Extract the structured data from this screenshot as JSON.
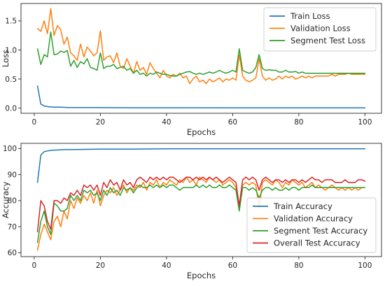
{
  "chart_data": [
    {
      "type": "line",
      "xlabel": "Epochs",
      "ylabel": "Loss",
      "xlim": [
        -4,
        105
      ],
      "ylim": [
        -0.09,
        1.8
      ],
      "xticks": [
        0,
        20,
        40,
        60,
        80,
        100
      ],
      "yticks": [
        0.0,
        0.5,
        1.0,
        1.5
      ],
      "ytick_labels": [
        "0.0",
        "0.5",
        "1.0",
        "1.5"
      ],
      "legend": "upper right",
      "grid": false,
      "series": [
        {
          "name": "Train Loss",
          "color": "#1f77b4",
          "x": [
            1,
            2,
            3,
            4,
            5,
            6,
            8,
            10,
            15,
            20,
            30,
            40,
            60,
            80,
            100
          ],
          "y": [
            0.38,
            0.07,
            0.035,
            0.025,
            0.02,
            0.015,
            0.015,
            0.01,
            0.01,
            0.008,
            0.005,
            0.005,
            0.004,
            0.003,
            0.003
          ]
        },
        {
          "name": "Validation Loss",
          "color": "#ff7f0e",
          "x": [
            1,
            2,
            3,
            4,
            5,
            6,
            7,
            8,
            9,
            10,
            11,
            12,
            13,
            14,
            15,
            16,
            17,
            18,
            19,
            20,
            21,
            22,
            23,
            24,
            25,
            26,
            27,
            28,
            29,
            30,
            31,
            32,
            33,
            34,
            35,
            36,
            37,
            38,
            39,
            40,
            41,
            42,
            43,
            44,
            45,
            46,
            47,
            48,
            49,
            50,
            51,
            52,
            53,
            54,
            55,
            56,
            57,
            58,
            59,
            60,
            61,
            62,
            63,
            64,
            65,
            66,
            67,
            68,
            69,
            70,
            71,
            72,
            73,
            74,
            75,
            76,
            77,
            78,
            79,
            80,
            81,
            82,
            83,
            84,
            85,
            86,
            87,
            88,
            89,
            90,
            91,
            92,
            93,
            94,
            95,
            96,
            97,
            98,
            99,
            100
          ],
          "y": [
            1.37,
            1.32,
            1.5,
            1.28,
            1.71,
            1.25,
            1.42,
            1.35,
            1.1,
            1.22,
            0.95,
            0.9,
            0.82,
            1.1,
            0.88,
            1.05,
            0.98,
            0.9,
            0.95,
            1.33,
            0.82,
            0.88,
            0.9,
            0.78,
            0.95,
            0.72,
            0.68,
            0.85,
            0.72,
            0.6,
            0.8,
            0.65,
            0.7,
            0.58,
            0.78,
            0.68,
            0.6,
            0.52,
            0.65,
            0.55,
            0.52,
            0.58,
            0.55,
            0.6,
            0.52,
            0.55,
            0.42,
            0.5,
            0.55,
            0.45,
            0.48,
            0.42,
            0.5,
            0.45,
            0.48,
            0.52,
            0.45,
            0.5,
            0.48,
            0.52,
            0.48,
            0.92,
            0.55,
            0.48,
            0.45,
            0.48,
            0.52,
            0.85,
            0.55,
            0.48,
            0.52,
            0.48,
            0.5,
            0.55,
            0.5,
            0.55,
            0.52,
            0.55,
            0.5,
            0.52,
            0.55,
            0.52,
            0.55,
            0.52,
            0.55,
            0.55,
            0.55,
            0.55,
            0.55,
            0.58,
            0.55,
            0.58,
            0.58,
            0.58,
            0.6,
            0.58,
            0.58,
            0.58,
            0.58,
            0.58
          ]
        },
        {
          "name": "Segment Test Loss",
          "color": "#2ca02c",
          "x": [
            1,
            2,
            3,
            4,
            5,
            6,
            7,
            8,
            9,
            10,
            11,
            12,
            13,
            14,
            15,
            16,
            17,
            18,
            19,
            20,
            21,
            22,
            23,
            24,
            25,
            26,
            27,
            28,
            29,
            30,
            31,
            32,
            33,
            34,
            35,
            36,
            37,
            38,
            39,
            40,
            41,
            42,
            43,
            44,
            45,
            46,
            47,
            48,
            49,
            50,
            51,
            52,
            53,
            54,
            55,
            56,
            57,
            58,
            59,
            60,
            61,
            62,
            63,
            64,
            65,
            66,
            67,
            68,
            69,
            70,
            71,
            72,
            73,
            74,
            75,
            76,
            77,
            78,
            79,
            80,
            81,
            82,
            83,
            84,
            85,
            86,
            87,
            88,
            89,
            90,
            91,
            92,
            93,
            94,
            95,
            96,
            97,
            98,
            99,
            100
          ],
          "y": [
            1.02,
            0.75,
            0.92,
            0.88,
            1.31,
            0.92,
            0.93,
            0.98,
            0.96,
            0.99,
            0.72,
            0.82,
            0.7,
            0.8,
            0.76,
            0.85,
            0.7,
            0.68,
            0.65,
            0.95,
            0.68,
            0.72,
            0.72,
            0.75,
            0.68,
            0.7,
            0.72,
            0.65,
            0.68,
            0.6,
            0.65,
            0.58,
            0.6,
            0.55,
            0.6,
            0.58,
            0.62,
            0.6,
            0.58,
            0.58,
            0.56,
            0.55,
            0.55,
            0.58,
            0.6,
            0.62,
            0.63,
            0.6,
            0.58,
            0.6,
            0.58,
            0.6,
            0.62,
            0.6,
            0.62,
            0.65,
            0.62,
            0.6,
            0.62,
            0.65,
            0.62,
            1.02,
            0.65,
            0.62,
            0.6,
            0.62,
            0.7,
            0.92,
            0.68,
            0.65,
            0.66,
            0.65,
            0.65,
            0.62,
            0.62,
            0.65,
            0.62,
            0.62,
            0.63,
            0.6,
            0.62,
            0.6,
            0.6,
            0.6,
            0.6,
            0.6,
            0.6,
            0.6,
            0.6,
            0.6,
            0.6,
            0.6,
            0.6,
            0.6,
            0.6,
            0.6,
            0.6,
            0.6,
            0.6,
            0.6
          ]
        }
      ]
    },
    {
      "type": "line",
      "xlabel": "Epochs",
      "ylabel": "Accuracy",
      "xlim": [
        -4,
        105
      ],
      "ylim": [
        58.5,
        102
      ],
      "xticks": [
        0,
        20,
        40,
        60,
        80,
        100
      ],
      "yticks": [
        60,
        70,
        80,
        90,
        100
      ],
      "ytick_labels": [
        "60",
        "70",
        "80",
        "90",
        "100"
      ],
      "legend": "lower right",
      "grid": false,
      "series": [
        {
          "name": "Train Accuracy",
          "color": "#1f77b4",
          "x": [
            1,
            2,
            3,
            4,
            5,
            6,
            8,
            10,
            12,
            15,
            20,
            30,
            40,
            60,
            80,
            100
          ],
          "y": [
            87,
            97.5,
            98.8,
            99.1,
            99.3,
            99.4,
            99.5,
            99.6,
            99.6,
            99.7,
            99.8,
            99.8,
            99.9,
            99.9,
            99.9,
            99.9
          ]
        },
        {
          "name": "Validation Accuracy",
          "color": "#ff7f0e",
          "x": [
            1,
            2,
            3,
            4,
            5,
            6,
            7,
            8,
            9,
            10,
            11,
            12,
            13,
            14,
            15,
            16,
            17,
            18,
            19,
            20,
            21,
            22,
            23,
            24,
            25,
            26,
            27,
            28,
            29,
            30,
            31,
            32,
            33,
            34,
            35,
            36,
            37,
            38,
            39,
            40,
            41,
            42,
            43,
            44,
            45,
            46,
            47,
            48,
            49,
            50,
            51,
            52,
            53,
            54,
            55,
            56,
            57,
            58,
            59,
            60,
            61,
            62,
            63,
            64,
            65,
            66,
            67,
            68,
            69,
            70,
            71,
            72,
            73,
            74,
            75,
            76,
            77,
            78,
            79,
            80,
            81,
            82,
            83,
            84,
            85,
            86,
            87,
            88,
            89,
            90,
            91,
            92,
            93,
            94,
            95,
            96,
            97,
            98,
            99,
            100
          ],
          "y": [
            61,
            67,
            71,
            68,
            65,
            72,
            74,
            70,
            76,
            73,
            80,
            77,
            81,
            79,
            82,
            80,
            83,
            79,
            84,
            78,
            82,
            84,
            83,
            85,
            82,
            84,
            86,
            83,
            85,
            84,
            86,
            85,
            87,
            84,
            87,
            86,
            88,
            85,
            87,
            86,
            88,
            87,
            86,
            88,
            87,
            89,
            87,
            88,
            86,
            89,
            88,
            87,
            89,
            88,
            87,
            88,
            86,
            87,
            88,
            87,
            85,
            77,
            86,
            87,
            86,
            87,
            86,
            77,
            87,
            88,
            87,
            86,
            88,
            87,
            85,
            87,
            86,
            88,
            87,
            86,
            87,
            85,
            86,
            87,
            85,
            86,
            85,
            84,
            85,
            86,
            85,
            84,
            85,
            84,
            85,
            84,
            85,
            84,
            85,
            85
          ]
        },
        {
          "name": "Segment Test Accuracy",
          "color": "#2ca02c",
          "x": [
            1,
            2,
            3,
            4,
            5,
            6,
            7,
            8,
            9,
            10,
            11,
            12,
            13,
            14,
            15,
            16,
            17,
            18,
            19,
            20,
            21,
            22,
            23,
            24,
            25,
            26,
            27,
            28,
            29,
            30,
            31,
            32,
            33,
            34,
            35,
            36,
            37,
            38,
            39,
            40,
            41,
            42,
            43,
            44,
            45,
            46,
            47,
            48,
            49,
            50,
            51,
            52,
            53,
            54,
            55,
            56,
            57,
            58,
            59,
            60,
            61,
            62,
            63,
            64,
            65,
            66,
            67,
            68,
            69,
            70,
            71,
            72,
            73,
            74,
            75,
            76,
            77,
            78,
            79,
            80,
            81,
            82,
            83,
            84,
            85,
            86,
            87,
            88,
            89,
            90,
            91,
            92,
            93,
            94,
            95,
            96,
            97,
            98,
            99,
            100
          ],
          "y": [
            64,
            72,
            76,
            70,
            67,
            79,
            78,
            76,
            76,
            77,
            82,
            80,
            82,
            80,
            84,
            83,
            84,
            82,
            83,
            80,
            84,
            82,
            85,
            83,
            84,
            82,
            85,
            84,
            85,
            83,
            85,
            86,
            85,
            85,
            86,
            85,
            86,
            85,
            86,
            85,
            86,
            86,
            85,
            84,
            85,
            85,
            85,
            85,
            86,
            85,
            86,
            85,
            86,
            85,
            85,
            86,
            85,
            85,
            86,
            85,
            84,
            76,
            85,
            85,
            84,
            85,
            84,
            81,
            84,
            85,
            85,
            84,
            85,
            84,
            84,
            85,
            84,
            85,
            85,
            84,
            85,
            85,
            85,
            86,
            85,
            85,
            85,
            85,
            85,
            85,
            85,
            85,
            85,
            85,
            85,
            85,
            85,
            85,
            85,
            85
          ]
        },
        {
          "name": "Overall Test Accuracy",
          "color": "#d62728",
          "x": [
            1,
            2,
            3,
            4,
            5,
            6,
            7,
            8,
            9,
            10,
            11,
            12,
            13,
            14,
            15,
            16,
            17,
            18,
            19,
            20,
            21,
            22,
            23,
            24,
            25,
            26,
            27,
            28,
            29,
            30,
            31,
            32,
            33,
            34,
            35,
            36,
            37,
            38,
            39,
            40,
            41,
            42,
            43,
            44,
            45,
            46,
            47,
            48,
            49,
            50,
            51,
            52,
            53,
            54,
            55,
            56,
            57,
            58,
            59,
            60,
            61,
            62,
            63,
            64,
            65,
            66,
            67,
            68,
            69,
            70,
            71,
            72,
            73,
            74,
            75,
            76,
            77,
            78,
            79,
            80,
            81,
            82,
            83,
            84,
            85,
            86,
            87,
            88,
            89,
            90,
            91,
            92,
            93,
            94,
            95,
            96,
            97,
            98,
            99,
            100
          ],
          "y": [
            68,
            80,
            78,
            72,
            69,
            80,
            80,
            79,
            81,
            80,
            83,
            82,
            84,
            82,
            86,
            85,
            86,
            84,
            86,
            82,
            87,
            85,
            88,
            86,
            87,
            84,
            88,
            86,
            87,
            85,
            88,
            89,
            88,
            87,
            89,
            88,
            89,
            88,
            89,
            88,
            89,
            89,
            88,
            87,
            88,
            89,
            89,
            88,
            89,
            88,
            89,
            88,
            89,
            88,
            89,
            88,
            87,
            88,
            89,
            88,
            87,
            78,
            88,
            89,
            88,
            89,
            88,
            84,
            88,
            89,
            88,
            87,
            88,
            88,
            87,
            88,
            87,
            88,
            88,
            87,
            88,
            87,
            88,
            89,
            88,
            88,
            87,
            88,
            88,
            88,
            87,
            87,
            87,
            88,
            87,
            87,
            87,
            88,
            88,
            87.5
          ]
        }
      ]
    }
  ]
}
